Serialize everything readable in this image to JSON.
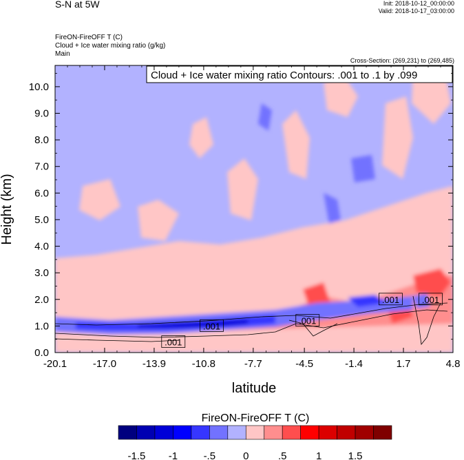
{
  "header": {
    "title": "S-N at 5W",
    "init": "Init: 2018-10-12_00:00:00",
    "valid": "Valid: 2018-10-17_03:00:00",
    "field1": "FireON-FireOFF T   (C)",
    "field2": "Cloud + Ice water mixing ratio   (g/kg)",
    "domain": "Main",
    "cross_section": "Cross-Section: (269,231) to (269,485)"
  },
  "chart_data": {
    "type": "heatmap",
    "title": "S-N at 5W",
    "xlabel": "latitude",
    "ylabel": "Height (km)",
    "xlim": [
      -20.1,
      4.8
    ],
    "ylim": [
      0.0,
      10.8
    ],
    "xticks": [
      "-20.1",
      "-17.0",
      "-13.9",
      "-10.8",
      "-7.7",
      "-4.5",
      "-1.4",
      "1.7",
      "4.8"
    ],
    "yticks": [
      "0.0",
      "1.0",
      "2.0",
      "3.0",
      "4.0",
      "5.0",
      "6.0",
      "7.0",
      "8.0",
      "9.0",
      "10.0"
    ],
    "contour_info": "Cloud + Ice water mixing ratio Contours: .001 to .1 by .099",
    "contour_labels": [
      {
        "text": ".001",
        "x": -10.3,
        "y": 1.0
      },
      {
        "text": ".001",
        "x": -12.7,
        "y": 0.4
      },
      {
        "text": ".001",
        "x": -4.3,
        "y": 1.2
      },
      {
        "text": ".001",
        "x": 0.9,
        "y": 2.0
      },
      {
        "text": ".001",
        "x": 3.4,
        "y": 2.0
      }
    ],
    "colorbar": {
      "label": "FireON-FireOFF T  (C)",
      "colors": [
        "#00007f",
        "#0000b2",
        "#0000d8",
        "#0000ff",
        "#3636ff",
        "#7272ff",
        "#b2b2ff",
        "#ffc6c6",
        "#ff8e8e",
        "#ff4e4e",
        "#ff0000",
        "#dc0000",
        "#c00000",
        "#a00000",
        "#7f0000"
      ],
      "tick_labels": [
        "-1.5",
        "-1",
        "-.5",
        "0",
        ".5",
        "1",
        "1.5"
      ]
    }
  }
}
